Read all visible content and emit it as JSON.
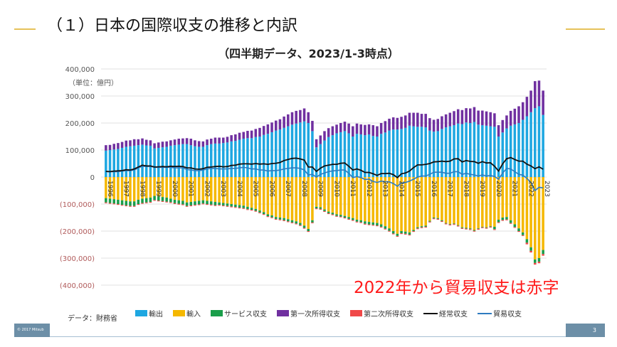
{
  "slide": {
    "title": "（１）日本の国際収支の推移と内訳",
    "page_number": "3",
    "copyright": "© 2017 Mitsub",
    "annotation": "2022年から貿易収支は赤字",
    "source": "データ：財務省"
  },
  "chart_data": {
    "type": "bar",
    "stacked": true,
    "title": "（四半期データ、2023/1-3時点）",
    "unit_label": "（単位：億円）",
    "frequency": "quarterly",
    "x_ticks": [
      "1996",
      "1997",
      "1998",
      "1999",
      "2000",
      "2001",
      "2002",
      "2003",
      "2004",
      "2005",
      "2006",
      "2007",
      "2008",
      "2009",
      "2010",
      "2011",
      "2012",
      "2013",
      "2014",
      "2015",
      "2016",
      "2017",
      "2018",
      "2019",
      "2020",
      "2021",
      "2022",
      "2023"
    ],
    "ylim": [
      -400000,
      400000
    ],
    "y_ticks": [
      400000,
      300000,
      200000,
      100000,
      0,
      -100000,
      -200000,
      -300000,
      -400000
    ],
    "y_tick_labels": [
      "400,000",
      "300,000",
      "200,000",
      "100,000",
      "0",
      "(100,000)",
      "(200,000)",
      "(300,000)",
      "(400,000)"
    ],
    "grid": true,
    "legend_position": "bottom",
    "colors": {
      "exports": "#1ea7e1",
      "imports": "#f5b800",
      "services": "#1a9e4a",
      "primary": "#7030a0",
      "secondary": "#f04848",
      "current": "#111111",
      "trade": "#2e7bc0"
    },
    "series": [
      {
        "key": "exports",
        "name": "輸出",
        "kind": "bar",
        "values": [
          98000,
          100000,
          102000,
          104000,
          108000,
          112000,
          114000,
          116000,
          118000,
          120000,
          117000,
          116000,
          106000,
          108000,
          110000,
          112000,
          116000,
          118000,
          120000,
          122000,
          122000,
          118000,
          114000,
          112000,
          112000,
          118000,
          122000,
          124000,
          124000,
          126000,
          128000,
          132000,
          134000,
          138000,
          142000,
          144000,
          144000,
          148000,
          150000,
          156000,
          160000,
          166000,
          172000,
          176000,
          182000,
          188000,
          194000,
          198000,
          202000,
          206000,
          200000,
          170000,
          110000,
          122000,
          135000,
          148000,
          155000,
          162000,
          166000,
          170000,
          162000,
          150000,
          160000,
          158000,
          155000,
          158000,
          152000,
          150000,
          160000,
          165000,
          172000,
          176000,
          176000,
          178000,
          182000,
          190000,
          188000,
          186000,
          186000,
          184000,
          172000,
          168000,
          170000,
          178000,
          184000,
          188000,
          192000,
          198000,
          196000,
          202000,
          200000,
          204000,
          194000,
          192000,
          190000,
          188000,
          186000,
          150000,
          165000,
          180000,
          190000,
          195000,
          200000,
          212000,
          225000,
          240000,
          255000,
          262000,
          230000
        ]
      },
      {
        "key": "imports",
        "name": "輸入",
        "kind": "bar",
        "values": [
          -78000,
          -80000,
          -82000,
          -84000,
          -86000,
          -88000,
          -90000,
          -90000,
          -84000,
          -80000,
          -78000,
          -76000,
          -70000,
          -72000,
          -74000,
          -76000,
          -80000,
          -84000,
          -86000,
          -88000,
          -94000,
          -92000,
          -90000,
          -88000,
          -86000,
          -88000,
          -90000,
          -92000,
          -94000,
          -96000,
          -98000,
          -100000,
          -102000,
          -104000,
          -106000,
          -110000,
          -114000,
          -118000,
          -124000,
          -130000,
          -138000,
          -142000,
          -148000,
          -150000,
          -152000,
          -156000,
          -160000,
          -164000,
          -170000,
          -180000,
          -192000,
          -160000,
          -110000,
          -112000,
          -120000,
          -128000,
          -132000,
          -138000,
          -140000,
          -144000,
          -148000,
          -152000,
          -158000,
          -160000,
          -164000,
          -166000,
          -168000,
          -170000,
          -175000,
          -182000,
          -190000,
          -200000,
          -210000,
          -200000,
          -202000,
          -205000,
          -196000,
          -186000,
          -182000,
          -180000,
          -162000,
          -150000,
          -152000,
          -160000,
          -170000,
          -174000,
          -172000,
          -178000,
          -186000,
          -188000,
          -190000,
          -196000,
          -190000,
          -184000,
          -186000,
          -182000,
          -184000,
          -158000,
          -150000,
          -148000,
          -160000,
          -175000,
          -190000,
          -205000,
          -230000,
          -260000,
          -305000,
          -300000,
          -270000
        ]
      },
      {
        "key": "services",
        "name": "サービス収支",
        "kind": "bar",
        "values": [
          -16000,
          -16000,
          -16000,
          -16000,
          -17000,
          -17000,
          -17000,
          -17000,
          -16000,
          -16000,
          -16000,
          -16000,
          -15000,
          -15000,
          -15000,
          -15000,
          -13000,
          -13000,
          -13000,
          -13000,
          -13000,
          -13000,
          -13000,
          -13000,
          -12000,
          -12000,
          -12000,
          -12000,
          -9000,
          -9000,
          -9000,
          -9000,
          -9000,
          -9000,
          -9000,
          -9000,
          -7000,
          -7000,
          -7000,
          -7000,
          -7000,
          -7000,
          -7000,
          -7000,
          -8000,
          -8000,
          -8000,
          -8000,
          -8000,
          -8000,
          -8000,
          -8000,
          -6000,
          -6000,
          -6000,
          -6000,
          -6000,
          -6000,
          -6000,
          -6000,
          -7000,
          -7000,
          -7000,
          -7000,
          -9000,
          -9000,
          -9000,
          -9000,
          -9000,
          -9000,
          -9000,
          -9000,
          -8000,
          -8000,
          -8000,
          -8000,
          -4000,
          -4000,
          -4000,
          -4000,
          -3000,
          -3000,
          -3000,
          -3000,
          -2000,
          -2000,
          -2000,
          -2000,
          -3000,
          -3000,
          -3000,
          -3000,
          -2000,
          -2000,
          -2000,
          -2000,
          -9000,
          -9000,
          -9000,
          -9000,
          -10000,
          -10000,
          -10000,
          -10000,
          -13000,
          -13000,
          -13000,
          -13000,
          -15000
        ]
      },
      {
        "key": "primary",
        "name": "第一次所得収支",
        "kind": "bar",
        "values": [
          20000,
          19000,
          21000,
          22000,
          22000,
          23000,
          22000,
          24000,
          22000,
          23000,
          21000,
          20000,
          19000,
          20000,
          21000,
          20000,
          20000,
          21000,
          22000,
          21000,
          22000,
          24000,
          22000,
          21000,
          20000,
          21000,
          20000,
          22000,
          22000,
          20000,
          21000,
          23000,
          24000,
          26000,
          25000,
          27000,
          28000,
          30000,
          32000,
          33000,
          35000,
          36000,
          37000,
          38000,
          42000,
          44000,
          46000,
          47000,
          46000,
          48000,
          40000,
          38000,
          30000,
          32000,
          35000,
          33000,
          33000,
          32000,
          34000,
          35000,
          36000,
          38000,
          38000,
          37000,
          38000,
          37000,
          40000,
          38000,
          40000,
          42000,
          44000,
          45000,
          43000,
          45000,
          46000,
          48000,
          50000,
          52000,
          48000,
          50000,
          46000,
          44000,
          45000,
          47000,
          48000,
          50000,
          52000,
          53000,
          52000,
          53000,
          54000,
          55000,
          52000,
          54000,
          53000,
          52000,
          50000,
          42000,
          46000,
          48000,
          55000,
          58000,
          62000,
          65000,
          72000,
          80000,
          100000,
          95000,
          90000
        ]
      },
      {
        "key": "secondary",
        "name": "第二次所得収支",
        "kind": "bar",
        "values": [
          -3000,
          -3000,
          -3000,
          -3000,
          -3000,
          -3000,
          -3000,
          -3000,
          -3000,
          -3000,
          -3000,
          -3000,
          -3000,
          -3000,
          -3000,
          -3000,
          -3000,
          -3000,
          -3000,
          -3000,
          -3000,
          -3000,
          -3000,
          -3000,
          -3000,
          -3000,
          -3000,
          -3000,
          -3000,
          -3000,
          -3000,
          -3000,
          -3000,
          -3000,
          -3000,
          -3000,
          -3000,
          -3000,
          -3000,
          -3000,
          -3000,
          -3000,
          -3000,
          -3000,
          -3000,
          -3000,
          -3000,
          -3000,
          -3000,
          -3000,
          -3000,
          -3000,
          -3000,
          -3000,
          -3000,
          -3000,
          -3000,
          -3000,
          -3000,
          -3000,
          -3000,
          -3000,
          -3000,
          -3000,
          -3000,
          -3000,
          -3000,
          -3000,
          -3000,
          -3000,
          -3000,
          -3000,
          -3000,
          -3000,
          -3000,
          -3000,
          -3000,
          -3000,
          -3000,
          -3000,
          -3000,
          -3000,
          -3000,
          -3000,
          -3000,
          -3000,
          -3000,
          -3000,
          -3000,
          -3000,
          -3000,
          -3000,
          -3000,
          -3000,
          -3000,
          -3000,
          -3000,
          -3000,
          -3000,
          -3000,
          -3000,
          -3000,
          -3000,
          -3000,
          -6000,
          -6000,
          -6000,
          -6000,
          -6000
        ]
      },
      {
        "key": "current",
        "name": "経常収支",
        "kind": "line",
        "derived_from": [
          "exports",
          "imports",
          "services",
          "primary",
          "secondary"
        ]
      },
      {
        "key": "trade",
        "name": "貿易収支",
        "kind": "line",
        "derived_from": [
          "exports",
          "imports"
        ]
      }
    ]
  }
}
